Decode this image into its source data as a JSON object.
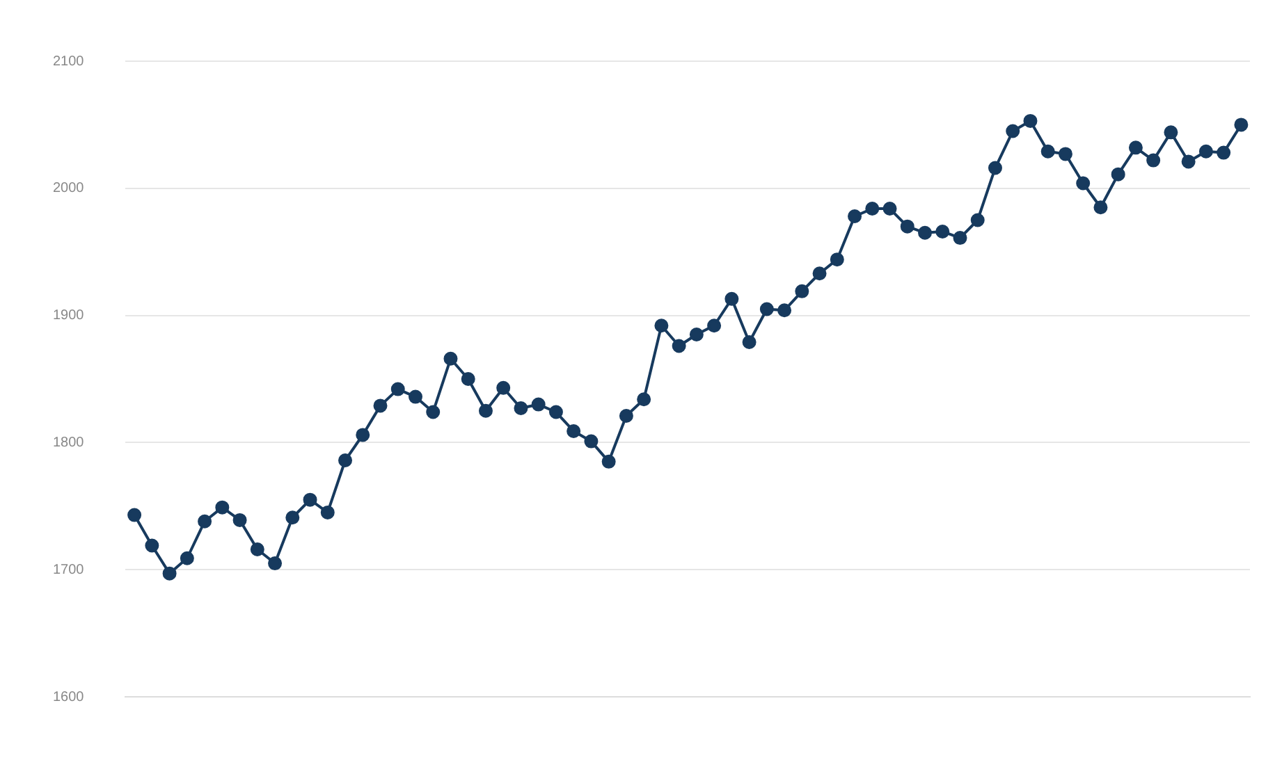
{
  "chart_data": {
    "type": "line",
    "categories": [
      null,
      null,
      null,
      null,
      null,
      null,
      null,
      null,
      null,
      null,
      null,
      null,
      null,
      null,
      null,
      null,
      null,
      null,
      null,
      null,
      null,
      null,
      null,
      null,
      null,
      null,
      null,
      null,
      null,
      null,
      null,
      null,
      null,
      null,
      null,
      null,
      null,
      null,
      null,
      null,
      null,
      null,
      null,
      null,
      null,
      null,
      null,
      null,
      null,
      null,
      null,
      null,
      null,
      null,
      null,
      null,
      null,
      null,
      null,
      null,
      null,
      null,
      null,
      null
    ],
    "series": [
      {
        "color": "#173a5e",
        "values": [
          1743,
          1719,
          1697,
          1709,
          1738,
          1749,
          1739,
          1716,
          1705,
          1741,
          1755,
          1745,
          1786,
          1806,
          1829,
          1842,
          1836,
          1824,
          1866,
          1850,
          1825,
          1843,
          1827,
          1830,
          1824,
          1809,
          1801,
          1785,
          1821,
          1834,
          1892,
          1876,
          1885,
          1892,
          1913,
          1879,
          1905,
          1904,
          1919,
          1933,
          1944,
          1978,
          1984,
          1984,
          1970,
          1965,
          1966,
          1961,
          1975,
          2016,
          2045,
          2053,
          2029,
          2027,
          2004,
          1985,
          2011,
          2032,
          2022,
          2044,
          2021,
          2029,
          2028,
          2050
        ]
      }
    ],
    "ylim": [
      1600,
      2100
    ],
    "yticks": [
      1600,
      1700,
      1800,
      1900,
      2000,
      2100
    ],
    "grid": "y",
    "legend": false,
    "marker": "circle",
    "line_style": "solid"
  }
}
